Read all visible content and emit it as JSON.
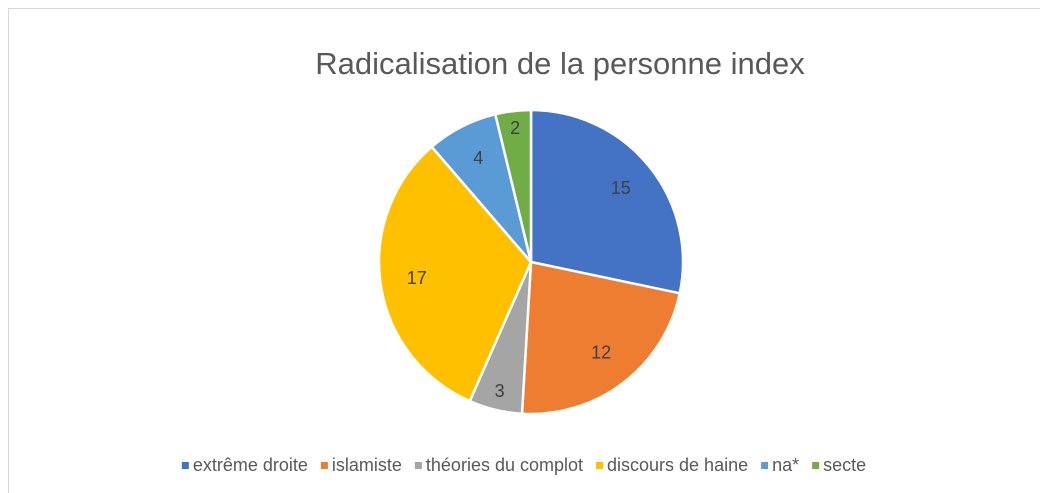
{
  "chart_data": {
    "type": "pie",
    "title": "Radicalisation de la personne index",
    "categories": [
      "extrême droite",
      "islamiste",
      "théories du complot",
      "discours de haine",
      "na*",
      "secte"
    ],
    "values": [
      15,
      12,
      3,
      17,
      4,
      2
    ],
    "colors": [
      "#4472c4",
      "#ed7d31",
      "#a5a5a5",
      "#ffc000",
      "#5b9bd5",
      "#70ad47"
    ],
    "legend": "bottom"
  }
}
